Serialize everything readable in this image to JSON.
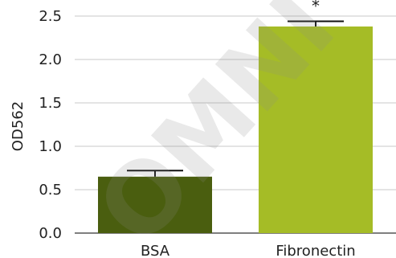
{
  "chart_data": {
    "type": "bar",
    "title": "",
    "xlabel": "",
    "ylabel": "OD562",
    "ylim": [
      0,
      2.5
    ],
    "yticks": [
      "0.0",
      "0.5",
      "1.0",
      "1.5",
      "2.0",
      "2.5"
    ],
    "grid": true,
    "categories": [
      "BSA",
      "Fibronectin"
    ],
    "values": [
      0.65,
      2.38
    ],
    "errors": [
      0.07,
      0.06
    ],
    "annotations": [
      "",
      "*"
    ],
    "colors": [
      "#4a5e0f",
      "#a5bc26"
    ]
  },
  "watermark": {
    "text": "OMNI",
    "color": "#8c8c8c"
  }
}
